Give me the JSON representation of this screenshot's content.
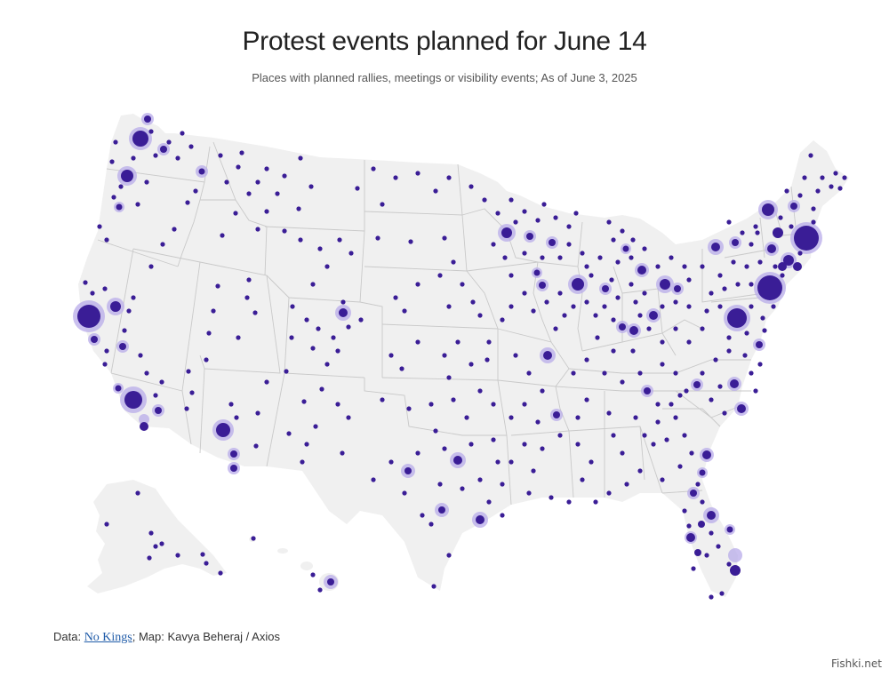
{
  "header": {
    "title": "Protest events planned for June 14",
    "subtitle": "Places with planned rallies, meetings or visibility events; As of June 3, 2025"
  },
  "credits": {
    "data_prefix": "Data: ",
    "source_link": "No Kings",
    "map_text": "; Map: Kavya Beheraj / Axios"
  },
  "watermark": "Fishki.net",
  "colors": {
    "land": "#f0f0f0",
    "border": "#c9c9c9",
    "dot": "#3a1d96",
    "halo": "#b9acea"
  }
}
